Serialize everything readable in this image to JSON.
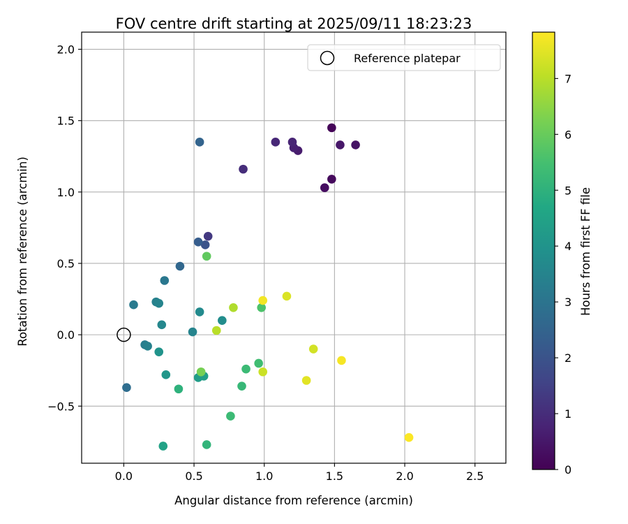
{
  "chart_data": {
    "type": "scatter",
    "title": "FOV centre drift starting at 2025/09/11 18:23:23",
    "xlabel": "Angular distance from reference (arcmin)",
    "ylabel": "Rotation from reference (arcmin)",
    "xlim": [
      -0.3,
      2.72
    ],
    "ylim": [
      -0.9,
      2.12
    ],
    "xticks": [
      0.0,
      0.5,
      1.0,
      1.5,
      2.0,
      2.5
    ],
    "xtick_labels": [
      "0.0",
      "0.5",
      "1.0",
      "1.5",
      "2.0",
      "2.5"
    ],
    "yticks": [
      -0.5,
      0.0,
      0.5,
      1.0,
      1.5,
      2.0
    ],
    "ytick_labels": [
      "−0.5",
      "0.0",
      "0.5",
      "1.0",
      "1.5",
      "2.0"
    ],
    "grid": true,
    "legend": {
      "position": "top-right",
      "entries": [
        "Reference platepar"
      ]
    },
    "reference_point": {
      "x": 0.0,
      "y": 0.0,
      "label": "Reference platepar"
    },
    "colorbar": {
      "label": "Hours from first FF file",
      "colormap": "viridis",
      "range": [
        0,
        7.83
      ],
      "ticks": [
        0,
        1,
        2,
        3,
        4,
        5,
        6,
        7
      ],
      "tick_labels": [
        "0",
        "1",
        "2",
        "3",
        "4",
        "5",
        "6",
        "7"
      ]
    },
    "points": [
      {
        "x": 1.48,
        "y": 1.45,
        "hours": 0.1
      },
      {
        "x": 1.48,
        "y": 1.09,
        "hours": 0.2
      },
      {
        "x": 1.43,
        "y": 1.03,
        "hours": 0.3
      },
      {
        "x": 1.65,
        "y": 1.33,
        "hours": 0.4
      },
      {
        "x": 1.54,
        "y": 1.33,
        "hours": 0.5
      },
      {
        "x": 1.24,
        "y": 1.29,
        "hours": 0.6
      },
      {
        "x": 1.21,
        "y": 1.31,
        "hours": 0.7
      },
      {
        "x": 1.2,
        "y": 1.35,
        "hours": 0.8
      },
      {
        "x": 1.08,
        "y": 1.35,
        "hours": 0.85
      },
      {
        "x": 0.85,
        "y": 1.16,
        "hours": 1.0
      },
      {
        "x": 0.6,
        "y": 0.69,
        "hours": 1.3
      },
      {
        "x": 0.58,
        "y": 0.63,
        "hours": 2.0
      },
      {
        "x": 0.53,
        "y": 0.65,
        "hours": 2.3
      },
      {
        "x": 0.54,
        "y": 1.35,
        "hours": 2.5
      },
      {
        "x": 0.4,
        "y": 0.48,
        "hours": 2.6
      },
      {
        "x": 0.02,
        "y": -0.37,
        "hours": 2.8
      },
      {
        "x": 0.29,
        "y": 0.38,
        "hours": 3.1
      },
      {
        "x": 0.07,
        "y": 0.21,
        "hours": 3.2
      },
      {
        "x": 0.23,
        "y": 0.23,
        "hours": 3.4
      },
      {
        "x": 0.25,
        "y": 0.22,
        "hours": 3.5
      },
      {
        "x": 0.15,
        "y": -0.07,
        "hours": 3.3
      },
      {
        "x": 0.17,
        "y": -0.08,
        "hours": 3.4
      },
      {
        "x": 0.27,
        "y": 0.07,
        "hours": 3.6
      },
      {
        "x": 0.49,
        "y": 0.02,
        "hours": 3.5
      },
      {
        "x": 0.54,
        "y": 0.16,
        "hours": 3.7
      },
      {
        "x": 0.7,
        "y": 0.1,
        "hours": 3.8
      },
      {
        "x": 0.25,
        "y": -0.12,
        "hours": 4.0
      },
      {
        "x": 0.3,
        "y": -0.28,
        "hours": 4.1
      },
      {
        "x": 0.53,
        "y": -0.3,
        "hours": 4.3
      },
      {
        "x": 0.57,
        "y": -0.29,
        "hours": 4.4
      },
      {
        "x": 0.28,
        "y": -0.78,
        "hours": 4.5
      },
      {
        "x": 0.59,
        "y": -0.77,
        "hours": 5.1
      },
      {
        "x": 0.39,
        "y": -0.38,
        "hours": 5.0
      },
      {
        "x": 0.76,
        "y": -0.57,
        "hours": 5.3
      },
      {
        "x": 0.84,
        "y": -0.36,
        "hours": 5.2
      },
      {
        "x": 0.87,
        "y": -0.24,
        "hours": 5.3
      },
      {
        "x": 0.96,
        "y": -0.2,
        "hours": 5.4
      },
      {
        "x": 0.98,
        "y": 0.19,
        "hours": 5.6
      },
      {
        "x": 0.59,
        "y": 0.55,
        "hours": 5.9
      },
      {
        "x": 0.55,
        "y": -0.26,
        "hours": 6.2
      },
      {
        "x": 0.78,
        "y": 0.19,
        "hours": 6.9
      },
      {
        "x": 0.66,
        "y": 0.03,
        "hours": 7.0
      },
      {
        "x": 0.99,
        "y": -0.26,
        "hours": 7.2
      },
      {
        "x": 1.16,
        "y": 0.27,
        "hours": 7.4
      },
      {
        "x": 1.35,
        "y": -0.1,
        "hours": 7.3
      },
      {
        "x": 1.3,
        "y": -0.32,
        "hours": 7.5
      },
      {
        "x": 0.99,
        "y": 0.24,
        "hours": 7.7
      },
      {
        "x": 1.55,
        "y": -0.18,
        "hours": 7.75
      },
      {
        "x": 2.03,
        "y": -0.72,
        "hours": 7.8
      }
    ]
  }
}
